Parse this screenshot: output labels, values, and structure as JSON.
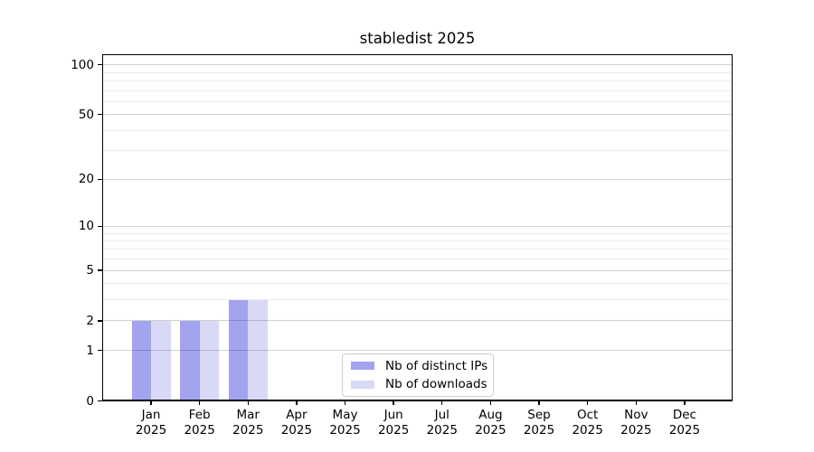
{
  "chart_data": {
    "type": "bar",
    "title": "stabledist 2025",
    "categories": [
      "Jan",
      "Feb",
      "Mar",
      "Apr",
      "May",
      "Jun",
      "Jul",
      "Aug",
      "Sep",
      "Oct",
      "Nov",
      "Dec"
    ],
    "year_label": "2025",
    "series": [
      {
        "name": "Nb of distinct IPs",
        "key": "distinct-ips",
        "color": "#a3a3ef",
        "values": [
          2,
          2,
          3,
          0,
          0,
          0,
          0,
          0,
          0,
          0,
          0,
          0
        ]
      },
      {
        "name": "Nb of downloads",
        "key": "downloads",
        "color": "#d8d8f7",
        "values": [
          2,
          2,
          3,
          0,
          0,
          0,
          0,
          0,
          0,
          0,
          0,
          0
        ]
      }
    ],
    "yscale": "log1p",
    "yticks_major": [
      0,
      1,
      2,
      5,
      10,
      20,
      50,
      100
    ],
    "yticks_minor": [
      3,
      4,
      6,
      7,
      8,
      9,
      30,
      40,
      60,
      70,
      80,
      90
    ],
    "ylim": [
      0,
      118
    ],
    "grid": "horizontal",
    "legend_position": "lower-center",
    "legend_border_color": "#cccccc",
    "axis_color": "#000000"
  }
}
